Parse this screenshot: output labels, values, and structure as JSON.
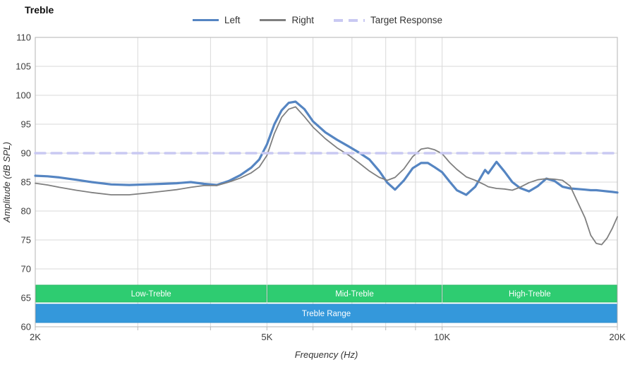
{
  "title": "Treble",
  "legend": [
    {
      "label": "Left",
      "color": "#5585c2",
      "style": "solid"
    },
    {
      "label": "Right",
      "color": "#7f7f7f",
      "style": "solid"
    },
    {
      "label": "Target Response",
      "color": "#c9c9f2",
      "style": "dashed"
    }
  ],
  "axes": {
    "x_label": "Frequency (Hz)",
    "y_label": "Amplitude (dB SPL)",
    "x_scale": "log",
    "x_min_khz": 2,
    "x_max_khz": 20,
    "x_ticks": [
      {
        "f": 2,
        "label": "2K"
      },
      {
        "f": 5,
        "label": "5K"
      },
      {
        "f": 10,
        "label": "10K"
      },
      {
        "f": 20,
        "label": "20K"
      }
    ],
    "x_gridlines_khz": [
      2,
      3,
      4,
      5,
      6,
      7,
      8,
      9,
      10,
      20
    ],
    "y_min": 60,
    "y_max": 110,
    "y_step": 5
  },
  "chart_data": {
    "type": "line",
    "title": "Treble",
    "xlabel": "Frequency (Hz)",
    "ylabel": "Amplitude (dB SPL)",
    "x_unit": "kHz",
    "x_scale": "log",
    "xlim": [
      2,
      20
    ],
    "ylim": [
      60,
      110
    ],
    "grid": true,
    "legend_position": "top-center",
    "x": [
      2.0,
      2.1,
      2.2,
      2.35,
      2.5,
      2.7,
      2.9,
      3.1,
      3.3,
      3.5,
      3.7,
      3.9,
      4.1,
      4.3,
      4.5,
      4.7,
      4.85,
      5.0,
      5.15,
      5.3,
      5.45,
      5.6,
      5.8,
      6.0,
      6.3,
      6.6,
      6.9,
      7.2,
      7.5,
      7.8,
      8.05,
      8.3,
      8.6,
      8.9,
      9.2,
      9.45,
      9.7,
      10.0,
      10.3,
      10.6,
      11.0,
      11.4,
      11.85,
      12.0,
      12.4,
      12.8,
      13.2,
      13.6,
      14.1,
      14.6,
      15.1,
      15.6,
      16.1,
      16.6,
      17.1,
      17.6,
      18.0,
      18.4,
      18.8,
      19.2,
      19.6,
      20.0
    ],
    "series": [
      {
        "name": "Left",
        "color": "#5585c2",
        "width": 3.2,
        "dash": null,
        "values": [
          86.1,
          86.0,
          85.8,
          85.4,
          85.0,
          84.6,
          84.5,
          84.6,
          84.7,
          84.8,
          85.0,
          84.7,
          84.5,
          85.2,
          86.2,
          87.5,
          88.9,
          91.5,
          95.0,
          97.4,
          98.7,
          98.9,
          97.6,
          95.5,
          93.6,
          92.3,
          91.2,
          90.1,
          88.9,
          86.9,
          84.9,
          83.7,
          85.3,
          87.4,
          88.3,
          88.3,
          87.6,
          86.7,
          85.1,
          83.6,
          82.8,
          84.2,
          87.1,
          86.5,
          88.5,
          86.8,
          85.0,
          84.0,
          83.4,
          84.3,
          85.6,
          85.2,
          84.2,
          83.9,
          83.8,
          83.7,
          83.6,
          83.6,
          83.5,
          83.4,
          83.3,
          83.2
        ]
      },
      {
        "name": "Right",
        "color": "#7f7f7f",
        "width": 1.8,
        "dash": null,
        "values": [
          84.8,
          84.5,
          84.1,
          83.6,
          83.2,
          82.8,
          82.8,
          83.1,
          83.4,
          83.7,
          84.1,
          84.4,
          84.4,
          85.0,
          85.7,
          86.6,
          87.6,
          89.6,
          93.4,
          96.2,
          97.6,
          98.0,
          96.3,
          94.5,
          92.5,
          90.9,
          89.7,
          88.3,
          86.9,
          85.8,
          85.3,
          85.8,
          87.3,
          89.4,
          90.7,
          90.9,
          90.6,
          89.9,
          88.4,
          87.2,
          85.9,
          85.3,
          84.5,
          84.2,
          83.9,
          83.8,
          83.6,
          84.1,
          84.9,
          85.4,
          85.6,
          85.5,
          85.3,
          84.3,
          81.5,
          78.8,
          75.8,
          74.4,
          74.2,
          75.3,
          77.0,
          79.0
        ]
      },
      {
        "name": "Target Response",
        "color": "#c9c9f2",
        "width": 3.5,
        "dash": "14 9",
        "constant_value": 90
      }
    ],
    "bands": [
      {
        "label": "Low-Treble",
        "from_khz": 2,
        "to_khz": 5,
        "row": "top",
        "fill": "#2ecc71",
        "border": "#29b765",
        "text_color": "#ffffff"
      },
      {
        "label": "Mid-Treble",
        "from_khz": 5,
        "to_khz": 10,
        "row": "top",
        "fill": "#2ecc71",
        "border": "#29b765",
        "text_color": "#ffffff"
      },
      {
        "label": "High-Treble",
        "from_khz": 10,
        "to_khz": 20,
        "row": "top",
        "fill": "#2ecc71",
        "border": "#29b765",
        "text_color": "#ffffff"
      },
      {
        "label": "Treble Range",
        "from_khz": 2,
        "to_khz": 20,
        "row": "bottom",
        "fill": "#3498db",
        "border": "#2e8ece",
        "text_color": "#ffffff"
      }
    ]
  }
}
